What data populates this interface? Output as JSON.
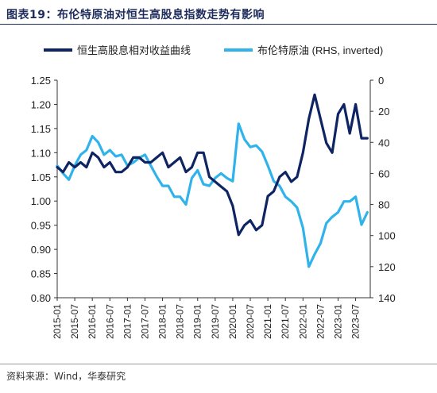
{
  "header": {
    "figure_label": "图表19：",
    "title": "布伦特原油对恒生高股息指数走势有影响"
  },
  "source": "资料来源：Wind，华泰研究",
  "colors": {
    "hs": "#0f2463",
    "brent": "#30b3ea",
    "title": "#1f2d5c"
  },
  "chart_data": {
    "type": "line",
    "title": "布伦特原油对恒生高股息指数走势有影响",
    "legend_position": "top",
    "grid": false,
    "x_ticks": [
      "2015-01",
      "2015-07",
      "2016-01",
      "2016-07",
      "2017-01",
      "2017-07",
      "2018-01",
      "2018-07",
      "2019-01",
      "2019-07",
      "2020-01",
      "2020-07",
      "2021-01",
      "2021-07",
      "2022-01",
      "2022-07",
      "2023-01",
      "2023-07"
    ],
    "x_range": [
      "2015-01",
      "2023-12"
    ],
    "left_axis": {
      "ylim": [
        0.8,
        1.25
      ],
      "ticks": [
        "0.80",
        "0.85",
        "0.90",
        "0.95",
        "1.00",
        "1.05",
        "1.10",
        "1.15",
        "1.20",
        "1.25"
      ]
    },
    "right_axis": {
      "ylim": [
        0,
        140
      ],
      "inverted": true,
      "ticks": [
        "140",
        "120",
        "100",
        "80",
        "60",
        "40",
        "20",
        "0"
      ]
    },
    "series": [
      {
        "name": "恒生高股息相对收益曲线",
        "axis": "left",
        "x": [
          "2015-01",
          "2015-03",
          "2015-05",
          "2015-07",
          "2015-09",
          "2015-11",
          "2016-01",
          "2016-03",
          "2016-05",
          "2016-07",
          "2016-09",
          "2016-11",
          "2017-01",
          "2017-03",
          "2017-05",
          "2017-07",
          "2017-09",
          "2017-11",
          "2018-01",
          "2018-03",
          "2018-05",
          "2018-07",
          "2018-09",
          "2018-11",
          "2019-01",
          "2019-03",
          "2019-05",
          "2019-07",
          "2019-09",
          "2019-11",
          "2020-01",
          "2020-03",
          "2020-05",
          "2020-07",
          "2020-09",
          "2020-11",
          "2021-01",
          "2021-03",
          "2021-05",
          "2021-07",
          "2021-09",
          "2021-11",
          "2022-01",
          "2022-03",
          "2022-05",
          "2022-07",
          "2022-09",
          "2022-11",
          "2023-01",
          "2023-03",
          "2023-05",
          "2023-07",
          "2023-09",
          "2023-11"
        ],
        "values": [
          1.07,
          1.06,
          1.08,
          1.07,
          1.08,
          1.07,
          1.1,
          1.09,
          1.07,
          1.08,
          1.06,
          1.06,
          1.07,
          1.09,
          1.09,
          1.08,
          1.08,
          1.09,
          1.1,
          1.07,
          1.08,
          1.09,
          1.06,
          1.07,
          1.1,
          1.1,
          1.05,
          1.04,
          1.03,
          1.02,
          0.99,
          0.93,
          0.95,
          0.96,
          0.94,
          0.95,
          1.01,
          1.02,
          1.05,
          1.06,
          1.04,
          1.05,
          1.1,
          1.17,
          1.22,
          1.17,
          1.12,
          1.1,
          1.18,
          1.2,
          1.14,
          1.2,
          1.13,
          1.13
        ]
      },
      {
        "name": "布伦特原油 (RHS, inverted)",
        "axis": "right",
        "x": [
          "2015-01",
          "2015-03",
          "2015-05",
          "2015-07",
          "2015-09",
          "2015-11",
          "2016-01",
          "2016-03",
          "2016-05",
          "2016-07",
          "2016-09",
          "2016-11",
          "2017-01",
          "2017-03",
          "2017-05",
          "2017-07",
          "2017-09",
          "2017-11",
          "2018-01",
          "2018-03",
          "2018-05",
          "2018-07",
          "2018-09",
          "2018-11",
          "2019-01",
          "2019-03",
          "2019-05",
          "2019-07",
          "2019-09",
          "2019-11",
          "2020-01",
          "2020-03",
          "2020-05",
          "2020-07",
          "2020-09",
          "2020-11",
          "2021-01",
          "2021-03",
          "2021-05",
          "2021-07",
          "2021-09",
          "2021-11",
          "2022-01",
          "2022-03",
          "2022-05",
          "2022-07",
          "2022-09",
          "2022-11",
          "2023-01",
          "2023-03",
          "2023-05",
          "2023-07",
          "2023-09",
          "2023-11"
        ],
        "values": [
          55,
          60,
          64,
          55,
          48,
          45,
          36,
          40,
          48,
          45,
          49,
          48,
          55,
          53,
          50,
          48,
          55,
          62,
          68,
          68,
          75,
          75,
          80,
          63,
          58,
          67,
          68,
          63,
          60,
          63,
          65,
          28,
          38,
          43,
          42,
          46,
          55,
          65,
          68,
          75,
          78,
          82,
          95,
          120,
          112,
          105,
          92,
          88,
          85,
          78,
          78,
          75,
          93,
          85
        ]
      }
    ]
  }
}
